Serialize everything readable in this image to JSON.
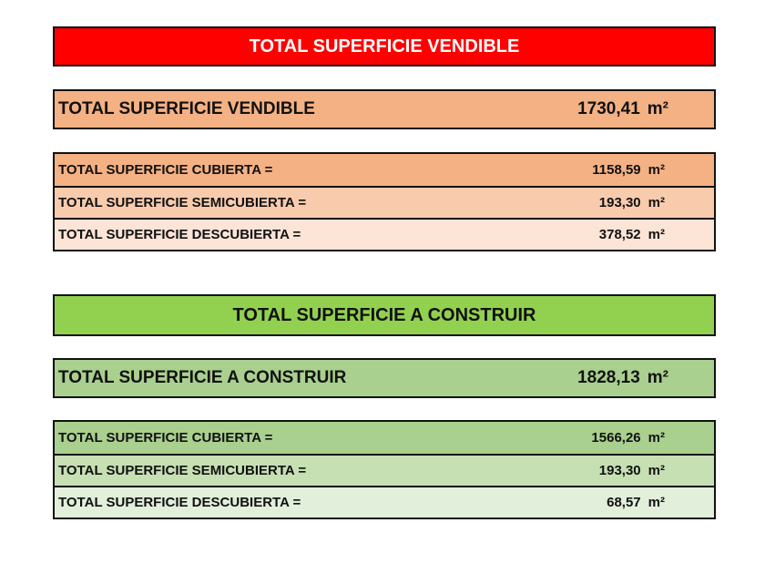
{
  "vendible": {
    "header": "TOTAL SUPERFICIE VENDIBLE",
    "total": {
      "label": "TOTAL SUPERFICIE VENDIBLE",
      "value": "1730,41",
      "unit": "m²"
    },
    "rows": [
      {
        "label": "TOTAL SUPERFICIE CUBIERTA =",
        "value": "1158,59",
        "unit": "m²"
      },
      {
        "label": "TOTAL SUPERFICIE SEMICUBIERTA =",
        "value": "193,30",
        "unit": "m²"
      },
      {
        "label": "TOTAL SUPERFICIE DESCUBIERTA =",
        "value": "378,52",
        "unit": "m²"
      }
    ],
    "colors": {
      "header": "#ff0000",
      "total": "#f4b183",
      "rows": [
        "#f4b183",
        "#f8cbad",
        "#fce4d6"
      ]
    }
  },
  "construir": {
    "header": "TOTAL SUPERFICIE A CONSTRUIR",
    "total": {
      "label": "TOTAL SUPERFICIE A CONSTRUIR",
      "value": "1828,13",
      "unit": "m²"
    },
    "rows": [
      {
        "label": "TOTAL SUPERFICIE CUBIERTA =",
        "value": "1566,26",
        "unit": "m²"
      },
      {
        "label": "TOTAL SUPERFICIE SEMICUBIERTA =",
        "value": "193,30",
        "unit": "m²"
      },
      {
        "label": "TOTAL SUPERFICIE DESCUBIERTA =",
        "value": "68,57",
        "unit": "m²"
      }
    ],
    "colors": {
      "header": "#92d050",
      "total": "#a9d08e",
      "rows": [
        "#a9d08e",
        "#c6e0b4",
        "#e2efda"
      ]
    }
  }
}
